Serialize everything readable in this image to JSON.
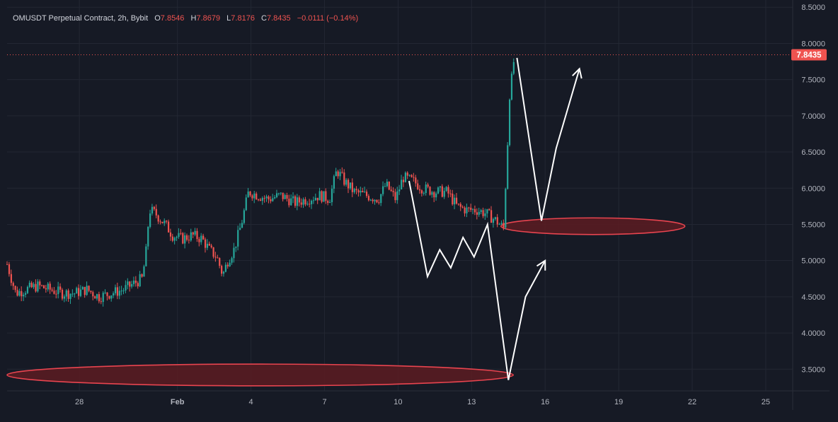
{
  "header": {
    "symbol": "OMUSDT Perpetual Contract, 2h, Bybit",
    "o_label": "O",
    "o_value": "7.8546",
    "h_label": "H",
    "h_value": "7.8679",
    "l_label": "L",
    "l_value": "7.8176",
    "c_label": "C",
    "c_value": "7.8435",
    "change": "−0.0111 (−0.14%)"
  },
  "price_badge": "7.8435",
  "colors": {
    "background": "#161a25",
    "up": "#26a69a",
    "down": "#ef5350",
    "grid": "#232733",
    "axis_text": "#b2b5be",
    "drawing": "#ffffff",
    "zone_fill": "#5c1c22",
    "zone_stroke": "#e8444f"
  },
  "chart_data": {
    "type": "candlestick",
    "title": "OMUSDT Perpetual Contract, 2h, Bybit",
    "ylim": [
      3.2,
      8.6
    ],
    "y_ticks": [
      "3.5000",
      "4.0000",
      "4.5000",
      "5.0000",
      "5.5000",
      "6.0000",
      "6.5000",
      "7.0000",
      "7.5000",
      "8.0000",
      "8.5000"
    ],
    "y_tick_values": [
      3.5,
      4.0,
      4.5,
      5.0,
      5.5,
      6.0,
      6.5,
      7.0,
      7.5,
      8.0,
      8.5
    ],
    "x_ticks": [
      "28",
      "Feb",
      "4",
      "7",
      "10",
      "13",
      "16",
      "19",
      "22",
      "25"
    ],
    "x_tick_days": [
      28,
      32,
      35,
      38,
      41,
      44,
      47,
      50,
      53,
      56
    ],
    "xlim_days": [
      25.05,
      57.1
    ],
    "last_price": 7.8435,
    "price_path": [
      [
        25.05,
        4.95
      ],
      [
        25.4,
        4.55
      ],
      [
        25.8,
        4.6
      ],
      [
        26.3,
        4.65
      ],
      [
        26.8,
        4.6
      ],
      [
        27.3,
        4.55
      ],
      [
        27.8,
        4.55
      ],
      [
        28.3,
        4.6
      ],
      [
        28.8,
        4.5
      ],
      [
        29.3,
        4.55
      ],
      [
        29.8,
        4.6
      ],
      [
        30.3,
        4.7
      ],
      [
        30.55,
        4.75
      ],
      [
        30.7,
        5.05
      ],
      [
        30.85,
        5.7
      ],
      [
        31.1,
        5.65
      ],
      [
        31.5,
        5.5
      ],
      [
        31.8,
        5.35
      ],
      [
        32.2,
        5.3
      ],
      [
        32.6,
        5.35
      ],
      [
        33.0,
        5.3
      ],
      [
        33.3,
        5.15
      ],
      [
        33.6,
        5.05
      ],
      [
        33.85,
        4.8
      ],
      [
        34.05,
        5.0
      ],
      [
        34.3,
        5.15
      ],
      [
        34.6,
        5.5
      ],
      [
        34.9,
        5.95
      ],
      [
        35.3,
        5.9
      ],
      [
        35.7,
        5.85
      ],
      [
        36.2,
        5.9
      ],
      [
        36.8,
        5.8
      ],
      [
        37.3,
        5.85
      ],
      [
        37.8,
        5.9
      ],
      [
        38.2,
        5.85
      ],
      [
        38.5,
        6.25
      ],
      [
        38.8,
        6.1
      ],
      [
        39.2,
        5.95
      ],
      [
        39.7,
        5.9
      ],
      [
        40.2,
        5.85
      ],
      [
        40.5,
        6.05
      ],
      [
        40.9,
        5.85
      ],
      [
        41.2,
        6.15
      ],
      [
        41.6,
        6.1
      ],
      [
        42.0,
        6.0
      ],
      [
        42.5,
        5.95
      ],
      [
        43.0,
        5.95
      ],
      [
        43.4,
        5.75
      ],
      [
        43.8,
        5.7
      ],
      [
        44.2,
        5.7
      ],
      [
        44.6,
        5.65
      ],
      [
        45.0,
        5.55
      ],
      [
        45.3,
        5.45
      ],
      [
        45.45,
        6.5
      ],
      [
        45.55,
        7.3
      ],
      [
        45.65,
        7.55
      ],
      [
        45.75,
        7.8435
      ]
    ],
    "drawings": {
      "arrow_path_1": [
        [
          41.45,
          6.1
        ],
        [
          42.2,
          4.78
        ],
        [
          42.7,
          5.15
        ],
        [
          43.15,
          4.9
        ],
        [
          43.65,
          5.32
        ],
        [
          44.1,
          5.05
        ],
        [
          44.65,
          5.5
        ],
        [
          45.5,
          3.35
        ],
        [
          46.2,
          4.5
        ],
        [
          47.0,
          5.0
        ]
      ],
      "arrow_path_2": [
        [
          45.85,
          7.8
        ],
        [
          46.85,
          5.55
        ],
        [
          47.45,
          6.55
        ],
        [
          48.4,
          7.65
        ]
      ],
      "zones": [
        {
          "day_from": 45.2,
          "day_to": 52.7,
          "price_top": 5.59,
          "price_bottom": 5.36
        },
        {
          "day_from": 25.05,
          "day_to": 45.7,
          "price_top": 3.57,
          "price_bottom": 3.27
        }
      ]
    }
  }
}
